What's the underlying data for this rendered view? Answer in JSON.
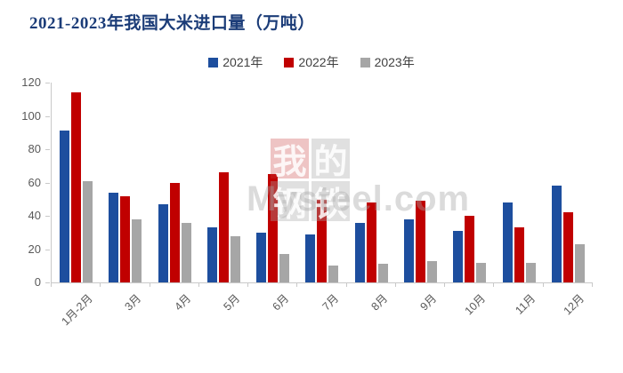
{
  "title": "2021-2023年我国大米进口量（万吨）",
  "colors": {
    "title_text": "#1B3C78",
    "axis_text": "#595959",
    "axis_line": "#C9C9C9",
    "series_2021": "#1D4E9E",
    "series_2022": "#C00000",
    "series_2023": "#A6A6A6"
  },
  "watermark": {
    "tiles": [
      "我",
      "的",
      "钢",
      "铁"
    ],
    "tile_colors": [
      "rgba(200,60,60,0.30)",
      "rgba(166,166,166,0.35)",
      "rgba(166,166,166,0.35)",
      "rgba(166,166,166,0.35)"
    ],
    "text": "Mysteel.com"
  },
  "chart_data": {
    "type": "bar",
    "title": "2021-2023年我国大米进口量（万吨）",
    "xlabel": "",
    "ylabel": "",
    "ylim": [
      0,
      120
    ],
    "yticks": [
      0,
      20,
      40,
      60,
      80,
      100,
      120
    ],
    "grid": false,
    "legend_position": "top",
    "categories": [
      "1月-2月",
      "3月",
      "4月",
      "5月",
      "6月",
      "7月",
      "8月",
      "9月",
      "10月",
      "11月",
      "12月"
    ],
    "series": [
      {
        "name": "2021年",
        "color": "#1D4E9E",
        "values": [
          91,
          54,
          47,
          33,
          30,
          29,
          36,
          38,
          31,
          48,
          58
        ]
      },
      {
        "name": "2022年",
        "color": "#C00000",
        "values": [
          114,
          52,
          60,
          66,
          65,
          50,
          48,
          49,
          40,
          33,
          42
        ]
      },
      {
        "name": "2023年",
        "color": "#A6A6A6",
        "values": [
          61,
          38,
          36,
          28,
          17,
          10,
          11,
          13,
          12,
          12,
          23
        ]
      }
    ]
  }
}
